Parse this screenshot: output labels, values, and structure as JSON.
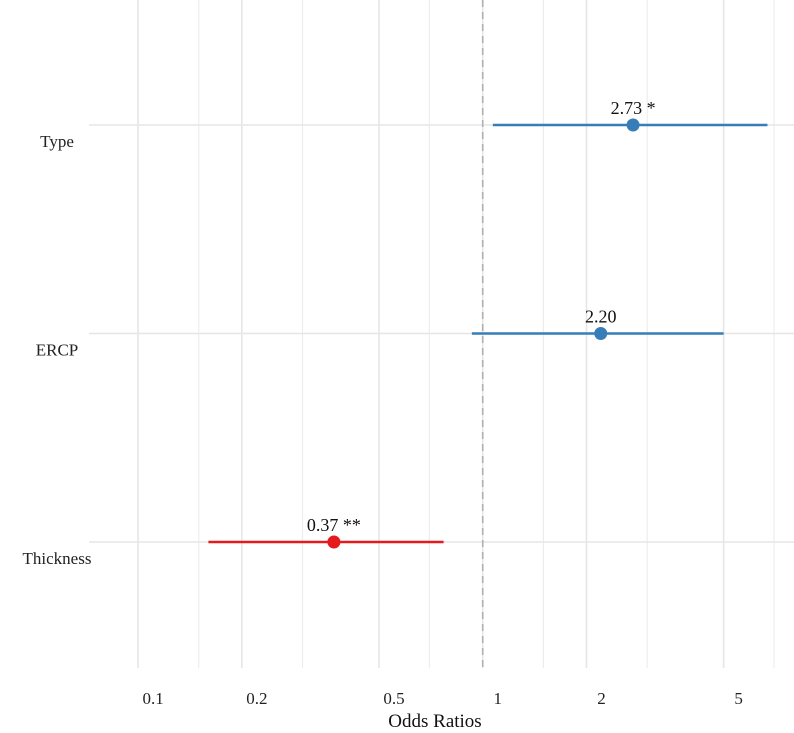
{
  "chart_data": {
    "type": "forest",
    "title": "",
    "xlabel": "Odds Ratios",
    "ylabel": "",
    "x_scale": "log",
    "xlim": [
      0.075,
      8.0
    ],
    "x_ticks": [
      0.1,
      0.2,
      0.5,
      1,
      2,
      5
    ],
    "x_tick_labels": [
      "0.1",
      "0.2",
      "0.5",
      "1",
      "2",
      "5"
    ],
    "x_minor_ticks": [
      0.15,
      0.3,
      0.7,
      1.5,
      3,
      7
    ],
    "reference_line": 1,
    "grid": true,
    "legend": "none",
    "colors": {
      "positive": "#377eb8",
      "negative": "#e41a1c"
    },
    "terms": [
      {
        "label": "Type",
        "estimate": 2.73,
        "ci_low": 1.07,
        "ci_high": 6.7,
        "label_text": "2.73 *",
        "direction": "positive"
      },
      {
        "label": "ERCP",
        "estimate": 2.2,
        "ci_low": 0.93,
        "ci_high": 5.0,
        "label_text": "2.20",
        "direction": "positive"
      },
      {
        "label": "Thickness",
        "estimate": 0.37,
        "ci_low": 0.16,
        "ci_high": 0.77,
        "label_text": "0.37 **",
        "direction": "negative"
      }
    ]
  }
}
